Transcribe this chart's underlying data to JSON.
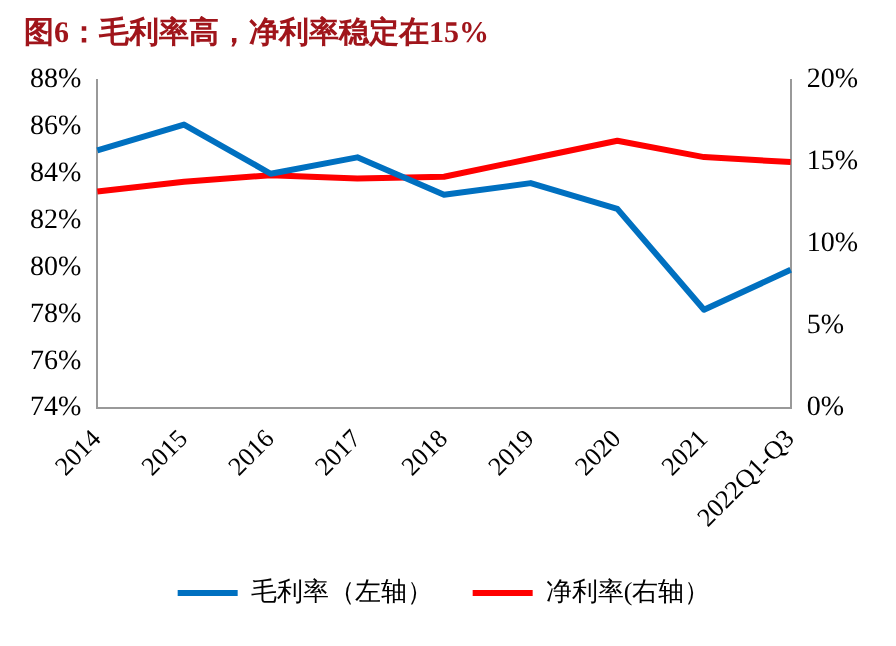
{
  "chart_data": {
    "type": "line",
    "title": "图6：毛利率高，净利率稳定在15%",
    "categories": [
      "2014",
      "2015",
      "2016",
      "2017",
      "2018",
      "2019",
      "2020",
      "2021",
      "2022Q1-Q3"
    ],
    "series": [
      {
        "name": "毛利率（左轴）",
        "color": "#0070c0",
        "values": [
          85.0,
          86.1,
          84.0,
          84.7,
          83.1,
          83.6,
          82.5,
          78.2,
          79.9
        ]
      },
      {
        "name": "净利率(右轴）",
        "color": "#ff0000",
        "axis": "y2",
        "values": [
          13.2,
          13.8,
          14.2,
          14.0,
          14.1,
          15.2,
          16.3,
          15.3,
          15.0
        ]
      }
    ],
    "ylim": [
      74,
      88
    ],
    "yticks": [
      {
        "value": 74,
        "label": "74%"
      },
      {
        "value": 76,
        "label": "76%"
      },
      {
        "value": 78,
        "label": "78%"
      },
      {
        "value": 80,
        "label": "80%"
      },
      {
        "value": 82,
        "label": "82%"
      },
      {
        "value": 84,
        "label": "84%"
      },
      {
        "value": 86,
        "label": "86%"
      },
      {
        "value": 88,
        "label": "88%"
      }
    ],
    "y2lim": [
      0,
      20
    ],
    "y2ticks": [
      {
        "value": 0,
        "label": "0%"
      },
      {
        "value": 5,
        "label": "5%"
      },
      {
        "value": 10,
        "label": "10%"
      },
      {
        "value": 15,
        "label": "15%"
      },
      {
        "value": 20,
        "label": "20%"
      }
    ],
    "legend": "bottom",
    "grid": false,
    "marker": "none",
    "line_style": "solid"
  }
}
